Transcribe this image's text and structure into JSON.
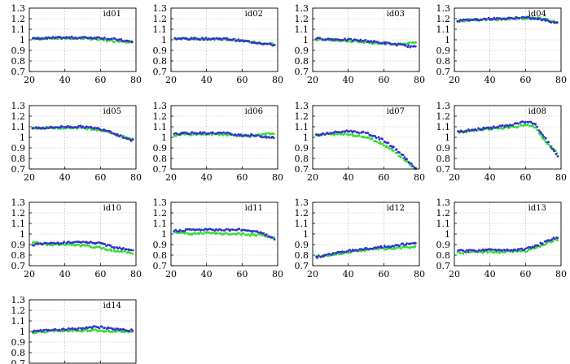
{
  "colors": {
    "series_a": "#3333cc",
    "series_b": "#33dd33",
    "grid": "#b0b0b0",
    "frame": "#000000"
  },
  "chart_data": {
    "type": "scatter",
    "x_ticks": [
      20,
      40,
      60,
      80
    ],
    "y_ticks": [
      0.7,
      0.8,
      0.9,
      1,
      1.1,
      1.2,
      1.3
    ],
    "xlim": [
      20,
      80
    ],
    "ylim": [
      0.7,
      1.3
    ],
    "grid": true,
    "series_names": [
      "blue markers",
      "green markers"
    ],
    "panels": [
      {
        "label": "id01",
        "x": [
          22,
          30,
          40,
          50,
          55,
          60,
          65,
          70,
          78
        ],
        "series": [
          {
            "name": "blue",
            "values": [
              1.01,
              1.015,
              1.02,
              1.02,
              1.02,
              1.02,
              1.01,
              1.0,
              0.98
            ]
          },
          {
            "name": "green",
            "values": [
              1.01,
              1.015,
              1.015,
              1.015,
              1.01,
              1.0,
              0.99,
              0.99,
              0.98
            ]
          }
        ]
      },
      {
        "label": "id02",
        "x": [
          22,
          30,
          40,
          50,
          55,
          60,
          65,
          70,
          78
        ],
        "series": [
          {
            "name": "blue",
            "values": [
              1.01,
              1.01,
              1.01,
              1.01,
              1.0,
              0.99,
              0.98,
              0.97,
              0.95
            ]
          },
          {
            "name": "green",
            "values": [
              1.01,
              1.01,
              1.01,
              1.005,
              1.0,
              0.99,
              0.98,
              0.97,
              0.96
            ]
          }
        ]
      },
      {
        "label": "id03",
        "x": [
          22,
          30,
          40,
          50,
          55,
          60,
          65,
          70,
          78
        ],
        "series": [
          {
            "name": "blue",
            "values": [
              1.01,
              1.005,
              1.0,
              0.99,
              0.98,
              0.97,
              0.96,
              0.95,
              0.93
            ]
          },
          {
            "name": "green",
            "values": [
              1.0,
              1.0,
              0.99,
              0.98,
              0.97,
              0.96,
              0.96,
              0.96,
              0.98
            ]
          }
        ]
      },
      {
        "label": "id04",
        "x": [
          22,
          30,
          40,
          50,
          55,
          60,
          65,
          70,
          78
        ],
        "series": [
          {
            "name": "blue",
            "values": [
              1.18,
              1.19,
              1.2,
              1.2,
              1.21,
              1.21,
              1.2,
              1.19,
              1.16
            ]
          },
          {
            "name": "green",
            "values": [
              1.18,
              1.19,
              1.19,
              1.2,
              1.2,
              1.2,
              1.21,
              1.2,
              1.17
            ]
          }
        ]
      },
      {
        "label": "id05",
        "x": [
          22,
          30,
          40,
          50,
          55,
          60,
          65,
          70,
          78
        ],
        "series": [
          {
            "name": "blue",
            "values": [
              1.09,
              1.09,
              1.1,
              1.1,
              1.09,
              1.08,
              1.06,
              1.02,
              0.97
            ]
          },
          {
            "name": "green",
            "values": [
              1.09,
              1.09,
              1.09,
              1.09,
              1.08,
              1.07,
              1.05,
              1.02,
              0.98
            ]
          }
        ]
      },
      {
        "label": "id06",
        "x": [
          22,
          30,
          40,
          50,
          55,
          60,
          65,
          70,
          78
        ],
        "series": [
          {
            "name": "blue",
            "values": [
              1.03,
              1.04,
              1.04,
              1.04,
              1.03,
              1.02,
              1.02,
              1.01,
              1.0
            ]
          },
          {
            "name": "green",
            "values": [
              1.02,
              1.03,
              1.03,
              1.03,
              1.02,
              1.02,
              1.01,
              1.02,
              1.04
            ]
          }
        ]
      },
      {
        "label": "id07",
        "x": [
          22,
          30,
          40,
          50,
          55,
          60,
          65,
          70,
          78
        ],
        "series": [
          {
            "name": "blue",
            "values": [
              1.02,
              1.04,
              1.06,
              1.04,
              1.01,
              0.97,
              0.91,
              0.84,
              0.7
            ]
          },
          {
            "name": "green",
            "values": [
              1.02,
              1.03,
              1.03,
              1.0,
              0.97,
              0.93,
              0.88,
              0.81,
              0.7
            ]
          }
        ]
      },
      {
        "label": "id08",
        "x": [
          22,
          30,
          40,
          50,
          55,
          60,
          65,
          70,
          78
        ],
        "series": [
          {
            "name": "blue",
            "values": [
              1.05,
              1.07,
              1.09,
              1.11,
              1.13,
              1.15,
              1.13,
              1.02,
              0.82
            ]
          },
          {
            "name": "green",
            "values": [
              1.05,
              1.06,
              1.08,
              1.09,
              1.1,
              1.12,
              1.1,
              0.98,
              0.85
            ]
          }
        ]
      },
      {
        "label": "id10",
        "x": [
          22,
          30,
          40,
          50,
          55,
          60,
          65,
          70,
          78
        ],
        "series": [
          {
            "name": "blue",
            "values": [
              0.9,
              0.91,
              0.92,
              0.92,
              0.92,
              0.91,
              0.89,
              0.87,
              0.85
            ]
          },
          {
            "name": "green",
            "values": [
              0.92,
              0.9,
              0.9,
              0.89,
              0.88,
              0.87,
              0.85,
              0.84,
              0.82
            ]
          }
        ]
      },
      {
        "label": "id11",
        "x": [
          22,
          30,
          40,
          50,
          55,
          60,
          65,
          70,
          78
        ],
        "series": [
          {
            "name": "blue",
            "values": [
              1.03,
              1.04,
              1.04,
              1.04,
              1.04,
              1.04,
              1.03,
              1.02,
              0.95
            ]
          },
          {
            "name": "green",
            "values": [
              1.02,
              1.0,
              1.01,
              1.0,
              1.0,
              1.0,
              0.99,
              0.99,
              0.96
            ]
          }
        ]
      },
      {
        "label": "id12",
        "x": [
          22,
          30,
          40,
          50,
          55,
          60,
          65,
          70,
          78
        ],
        "series": [
          {
            "name": "blue",
            "values": [
              0.78,
              0.81,
              0.84,
              0.86,
              0.87,
              0.88,
              0.88,
              0.9,
              0.91
            ]
          },
          {
            "name": "green",
            "values": [
              0.79,
              0.8,
              0.83,
              0.85,
              0.86,
              0.86,
              0.86,
              0.87,
              0.88
            ]
          }
        ]
      },
      {
        "label": "id13",
        "x": [
          22,
          30,
          40,
          50,
          55,
          60,
          65,
          70,
          78
        ],
        "series": [
          {
            "name": "blue",
            "values": [
              0.84,
              0.84,
              0.85,
              0.85,
              0.85,
              0.86,
              0.88,
              0.92,
              0.97
            ]
          },
          {
            "name": "green",
            "values": [
              0.82,
              0.83,
              0.83,
              0.83,
              0.84,
              0.84,
              0.86,
              0.9,
              0.95
            ]
          }
        ]
      },
      {
        "label": "id14",
        "x": [
          22,
          30,
          40,
          50,
          55,
          60,
          65,
          70,
          78
        ],
        "series": [
          {
            "name": "blue",
            "values": [
              1.0,
              1.01,
              1.02,
              1.03,
              1.04,
              1.04,
              1.03,
              1.02,
              1.01
            ]
          },
          {
            "name": "green",
            "values": [
              0.99,
              1.0,
              1.01,
              1.01,
              1.01,
              1.01,
              1.0,
              1.0,
              1.0
            ]
          }
        ]
      }
    ]
  }
}
